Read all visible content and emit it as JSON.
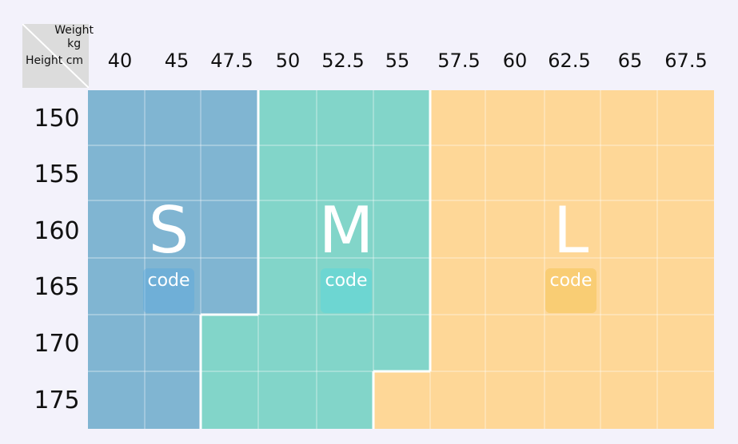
{
  "chart_data": {
    "type": "table",
    "corner": {
      "weight_label": "Weight",
      "weight_unit": "kg",
      "height_label": "Height cm"
    },
    "weights": [
      "40",
      "45",
      "47.5",
      "50",
      "52.5",
      "55",
      "57.5",
      "60",
      "62.5",
      "65",
      "67.5"
    ],
    "heights": [
      "150",
      "155",
      "160",
      "165",
      "170",
      "175"
    ],
    "sizes": {
      "S": {
        "label": "S",
        "color": "#80b5d2"
      },
      "M": {
        "label": "M",
        "color": "#82d5c9"
      },
      "L": {
        "label": "L",
        "color": "#fed797"
      }
    },
    "grid": [
      [
        "S",
        "S",
        "S",
        "M",
        "M",
        "M",
        "L",
        "L",
        "L",
        "L",
        "L"
      ],
      [
        "S",
        "S",
        "S",
        "M",
        "M",
        "M",
        "L",
        "L",
        "L",
        "L",
        "L"
      ],
      [
        "S",
        "S",
        "S",
        "M",
        "M",
        "M",
        "L",
        "L",
        "L",
        "L",
        "L"
      ],
      [
        "S",
        "S",
        "S",
        "M",
        "M",
        "M",
        "L",
        "L",
        "L",
        "L",
        "L"
      ],
      [
        "S",
        "S",
        "M",
        "M",
        "M",
        "M",
        "L",
        "L",
        "L",
        "L",
        "L"
      ],
      [
        "S",
        "S",
        "M",
        "M",
        "M",
        "L",
        "L",
        "L",
        "L",
        "L",
        "L"
      ]
    ],
    "code_label": "code",
    "grid_lines": true,
    "legend": "none"
  }
}
